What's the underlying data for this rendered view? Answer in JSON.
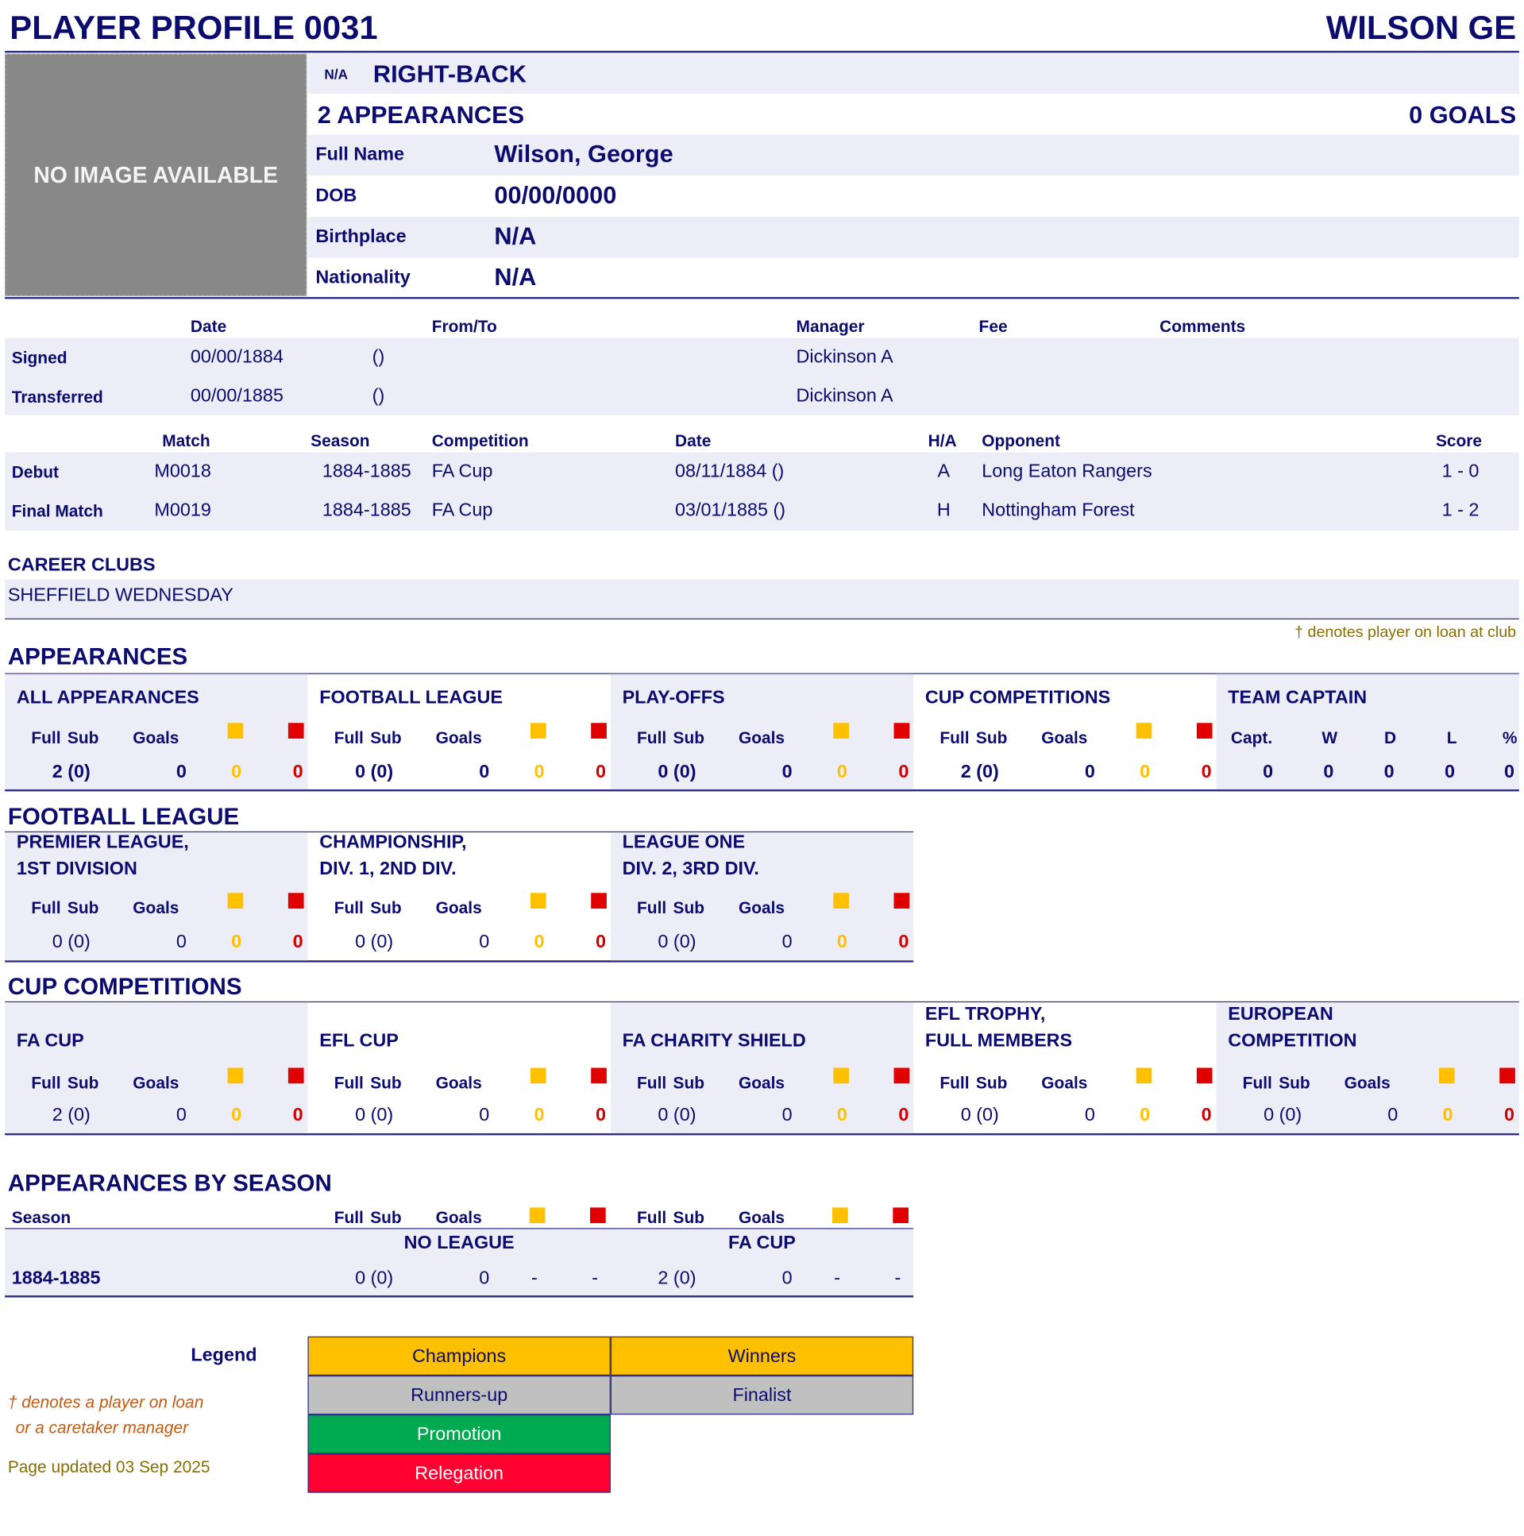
{
  "header": {
    "title": "PLAYER PROFILE 0031",
    "name": "WILSON GE"
  },
  "photo": {
    "placeholder": "NO IMAGE AVAILABLE"
  },
  "profile": {
    "number": "N/A",
    "position": "RIGHT-BACK",
    "appearances": "2 APPEARANCES",
    "goals": "0 GOALS",
    "fields": [
      {
        "label": "Full Name",
        "value": "Wilson, George"
      },
      {
        "label": "DOB",
        "value": "00/00/0000"
      },
      {
        "label": "Birthplace",
        "value": "N/A"
      },
      {
        "label": "Nationality",
        "value": "N/A"
      }
    ]
  },
  "transfers": {
    "headers": [
      "Date",
      "From/To",
      "Manager",
      "Fee",
      "Comments"
    ],
    "rows": [
      {
        "label": "Signed",
        "date": "00/00/1884",
        "from_to": "()",
        "manager": "Dickinson A"
      },
      {
        "label": "Transferred",
        "date": "00/00/1885",
        "from_to": "()",
        "manager": "Dickinson A"
      }
    ]
  },
  "matches": {
    "headers": [
      "Match",
      "Season",
      "Competition",
      "Date",
      "H/A",
      "Opponent",
      "Score"
    ],
    "rows": [
      {
        "label": "Debut",
        "match": "M0018",
        "season": "1884-1885",
        "competition": "FA Cup",
        "date": "08/11/1884 ()",
        "ha": "A",
        "opponent": "Long Eaton Rangers",
        "score": "1 - 0"
      },
      {
        "label": "Final Match",
        "match": "M0019",
        "season": "1884-1885",
        "competition": "FA Cup",
        "date": "03/01/1885 ()",
        "ha": "H",
        "opponent": "Nottingham Forest",
        "score": "1 - 2"
      }
    ]
  },
  "career": {
    "title": "CAREER CLUBS",
    "clubs": "SHEFFIELD WEDNESDAY",
    "loan_note": "† denotes player on loan at club"
  },
  "stat_headers": {
    "full": "Full",
    "sub": "Sub",
    "goals": "Goals"
  },
  "appearances": {
    "title": "APPEARANCES",
    "cards": [
      {
        "title": "ALL APPEARANCES",
        "apps": "2 (0)",
        "goals": "0",
        "yellow": "0",
        "red": "0"
      },
      {
        "title": "FOOTBALL LEAGUE",
        "apps": "0 (0)",
        "goals": "0",
        "yellow": "0",
        "red": "0"
      },
      {
        "title": "PLAY-OFFS",
        "apps": "0 (0)",
        "goals": "0",
        "yellow": "0",
        "red": "0"
      },
      {
        "title": "CUP COMPETITIONS",
        "apps": "2 (0)",
        "goals": "0",
        "yellow": "0",
        "red": "0"
      }
    ],
    "captain": {
      "title": "TEAM CAPTAIN",
      "headers": [
        "Capt.",
        "W",
        "D",
        "L",
        "%"
      ],
      "values": [
        "0",
        "0",
        "0",
        "0",
        "0"
      ]
    }
  },
  "football_league": {
    "title": "FOOTBALL LEAGUE",
    "cards": [
      {
        "title": "PREMIER LEAGUE,",
        "title2": "1ST DIVISION",
        "apps": "0 (0)",
        "goals": "0",
        "yellow": "0",
        "red": "0"
      },
      {
        "title": "CHAMPIONSHIP,",
        "title2": "DIV. 1, 2ND DIV.",
        "apps": "0 (0)",
        "goals": "0",
        "yellow": "0",
        "red": "0"
      },
      {
        "title": "LEAGUE ONE",
        "title2": "DIV. 2, 3RD DIV.",
        "apps": "0 (0)",
        "goals": "0",
        "yellow": "0",
        "red": "0"
      }
    ]
  },
  "cup_competitions": {
    "title": "CUP COMPETITIONS",
    "cards": [
      {
        "title": "",
        "title2": "FA CUP",
        "apps": "2 (0)",
        "goals": "0",
        "yellow": "0",
        "red": "0"
      },
      {
        "title": "",
        "title2": "EFL CUP",
        "apps": "0 (0)",
        "goals": "0",
        "yellow": "0",
        "red": "0"
      },
      {
        "title": "",
        "title2": "FA CHARITY SHIELD",
        "apps": "0 (0)",
        "goals": "0",
        "yellow": "0",
        "red": "0"
      },
      {
        "title": "EFL TROPHY,",
        "title2": "FULL MEMBERS",
        "apps": "0 (0)",
        "goals": "0",
        "yellow": "0",
        "red": "0"
      },
      {
        "title": "EUROPEAN",
        "title2": "COMPETITION",
        "apps": "0 (0)",
        "goals": "0",
        "yellow": "0",
        "red": "0"
      }
    ]
  },
  "by_season": {
    "title": "APPEARANCES BY SEASON",
    "season_header": "Season",
    "groups": [
      {
        "name": "NO LEAGUE"
      },
      {
        "name": "FA CUP"
      }
    ],
    "rows": [
      {
        "season": "1884-1885",
        "cols": [
          {
            "apps": "0 (0)",
            "goals": "0",
            "yellow": "-",
            "red": "-"
          },
          {
            "apps": "2 (0)",
            "goals": "0",
            "yellow": "-",
            "red": "-"
          }
        ]
      }
    ]
  },
  "legend": {
    "title": "Legend",
    "items": [
      {
        "label": "Champions",
        "color": "#ffc000"
      },
      {
        "label": "Winners",
        "color": "#ffc000"
      },
      {
        "label": "Runners-up",
        "color": "#c0c0c0"
      },
      {
        "label": "Finalist",
        "color": "#c0c0c0"
      },
      {
        "label": "Promotion",
        "color": "#00aa50"
      },
      {
        "label": "Relegation",
        "color": "#ff0030"
      }
    ],
    "loan_note_1": "† denotes a player on loan",
    "loan_note_2": "or a caretaker manager",
    "updated": "Page updated 03 Sep 2025"
  },
  "colors": {
    "navy": "#0c0c6e",
    "band": "#ededf7",
    "yellow_card": "#ffc000",
    "red_card": "#e00000"
  }
}
